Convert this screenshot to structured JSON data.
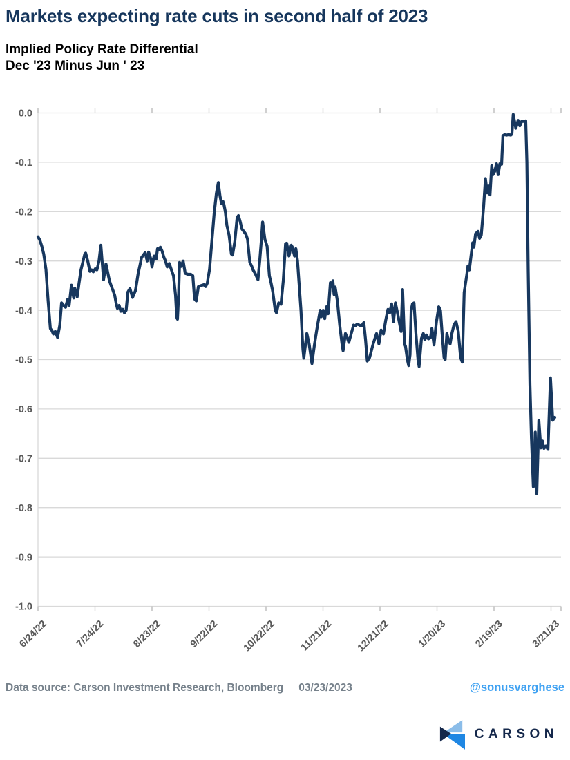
{
  "title": "Markets expecting rate cuts in second half of 2023",
  "subtitle_line1": "Implied Policy Rate Differential",
  "subtitle_line2": "Dec '23 Minus Jun ' 23",
  "footer": {
    "data_source": "Data source:  Carson Investment Research, Bloomberg",
    "date": "03/23/2023",
    "handle": "@sonusvarghese",
    "logo_text": "CARSON"
  },
  "colors": {
    "title": "#16365c",
    "line": "#17375e",
    "grid": "#d9d9d9",
    "tick": "#b7b7b7",
    "axis_label": "#595959",
    "footer_text": "#76818b",
    "handle_blue": "#3ea1f2",
    "logo_navy": "#15284b",
    "logo_light_blue": "#8bbde9",
    "logo_bright_blue": "#1f87e3"
  },
  "chart_data": {
    "type": "line",
    "title": "Implied Policy Rate Differential Dec '23 Minus Jun '23",
    "xlabel": "",
    "ylabel": "",
    "ylim": [
      -1.0,
      0.0
    ],
    "y_tick_labels": [
      "0.0",
      "-0.1",
      "-0.2",
      "-0.3",
      "-0.4",
      "-0.5",
      "-0.6",
      "-0.7",
      "-0.8",
      "-0.9",
      "-1.0"
    ],
    "x_tick_labels": [
      "6/24/22",
      "7/24/22",
      "8/23/22",
      "9/22/22",
      "10/22/22",
      "11/21/22",
      "12/21/22",
      "1/20/23",
      "2/19/23",
      "3/21/23"
    ],
    "x_tick_days": [
      0,
      30,
      60,
      90,
      120,
      150,
      180,
      210,
      240,
      270
    ],
    "x_unit": "calendar days since 6/24/22",
    "grid": "horizontal",
    "legend": "none",
    "series": [
      {
        "name": "Dec '23 minus Jun '23 implied policy rate differential",
        "points": [
          [
            0,
            -0.251
          ],
          [
            1,
            -0.258
          ],
          [
            2,
            -0.27
          ],
          [
            3,
            -0.286
          ],
          [
            4.2,
            -0.317
          ],
          [
            5.3,
            -0.38
          ],
          [
            6.5,
            -0.437
          ],
          [
            7.3,
            -0.441
          ],
          [
            8.1,
            -0.448
          ],
          [
            9.1,
            -0.443
          ],
          [
            10.3,
            -0.455
          ],
          [
            11.5,
            -0.43
          ],
          [
            12.4,
            -0.385
          ],
          [
            13.5,
            -0.39
          ],
          [
            14.5,
            -0.394
          ],
          [
            15.6,
            -0.378
          ],
          [
            16.4,
            -0.39
          ],
          [
            17.6,
            -0.349
          ],
          [
            18.8,
            -0.375
          ],
          [
            19.4,
            -0.355
          ],
          [
            20.6,
            -0.373
          ],
          [
            21.6,
            -0.345
          ],
          [
            22.6,
            -0.318
          ],
          [
            24.6,
            -0.286
          ],
          [
            25.1,
            -0.284
          ],
          [
            26.2,
            -0.3
          ],
          [
            27.3,
            -0.321
          ],
          [
            28.2,
            -0.318
          ],
          [
            29.1,
            -0.322
          ],
          [
            30.1,
            -0.316
          ],
          [
            31,
            -0.318
          ],
          [
            32.1,
            -0.3
          ],
          [
            33.1,
            -0.268
          ],
          [
            34.5,
            -0.338
          ],
          [
            35.8,
            -0.306
          ],
          [
            37.6,
            -0.34
          ],
          [
            38.5,
            -0.35
          ],
          [
            39.5,
            -0.36
          ],
          [
            40.4,
            -0.37
          ],
          [
            41.1,
            -0.385
          ],
          [
            41.8,
            -0.396
          ],
          [
            42.7,
            -0.39
          ],
          [
            43.6,
            -0.402
          ],
          [
            44.6,
            -0.398
          ],
          [
            45.5,
            -0.405
          ],
          [
            46.4,
            -0.4
          ],
          [
            47.3,
            -0.363
          ],
          [
            48.4,
            -0.356
          ],
          [
            49.8,
            -0.374
          ],
          [
            51.3,
            -0.36
          ],
          [
            52.7,
            -0.326
          ],
          [
            53.6,
            -0.31
          ],
          [
            54.5,
            -0.293
          ],
          [
            55.5,
            -0.288
          ],
          [
            56.4,
            -0.283
          ],
          [
            57.5,
            -0.3
          ],
          [
            58.2,
            -0.282
          ],
          [
            59.3,
            -0.295
          ],
          [
            60,
            -0.312
          ],
          [
            61.1,
            -0.29
          ],
          [
            62.2,
            -0.296
          ],
          [
            62.9,
            -0.275
          ],
          [
            63.7,
            -0.277
          ],
          [
            64.4,
            -0.272
          ],
          [
            65.3,
            -0.28
          ],
          [
            66.2,
            -0.292
          ],
          [
            67.1,
            -0.3
          ],
          [
            68,
            -0.312
          ],
          [
            69.1,
            -0.305
          ],
          [
            70.2,
            -0.318
          ],
          [
            71.3,
            -0.33
          ],
          [
            72.4,
            -0.37
          ],
          [
            73,
            -0.414
          ],
          [
            73.4,
            -0.418
          ],
          [
            74,
            -0.37
          ],
          [
            74.5,
            -0.303
          ],
          [
            75.3,
            -0.311
          ],
          [
            76.4,
            -0.3
          ],
          [
            77.5,
            -0.325
          ],
          [
            78.9,
            -0.327
          ],
          [
            80.4,
            -0.327
          ],
          [
            81.5,
            -0.33
          ],
          [
            82.4,
            -0.377
          ],
          [
            83.3,
            -0.381
          ],
          [
            84.4,
            -0.352
          ],
          [
            85.8,
            -0.35
          ],
          [
            87.3,
            -0.348
          ],
          [
            88.2,
            -0.352
          ],
          [
            89.1,
            -0.345
          ],
          [
            90.3,
            -0.317
          ],
          [
            91.5,
            -0.261
          ],
          [
            92.7,
            -0.205
          ],
          [
            93.9,
            -0.163
          ],
          [
            94.9,
            -0.141
          ],
          [
            95.8,
            -0.168
          ],
          [
            96.6,
            -0.184
          ],
          [
            97.3,
            -0.179
          ],
          [
            97.9,
            -0.186
          ],
          [
            98.6,
            -0.2
          ],
          [
            99.4,
            -0.228
          ],
          [
            100.6,
            -0.248
          ],
          [
            101.8,
            -0.286
          ],
          [
            102.4,
            -0.288
          ],
          [
            103.6,
            -0.26
          ],
          [
            104.8,
            -0.212
          ],
          [
            105.5,
            -0.208
          ],
          [
            106.4,
            -0.22
          ],
          [
            107.3,
            -0.235
          ],
          [
            108.5,
            -0.241
          ],
          [
            109.4,
            -0.246
          ],
          [
            110.3,
            -0.256
          ],
          [
            111.5,
            -0.303
          ],
          [
            112.4,
            -0.31
          ],
          [
            113.3,
            -0.319
          ],
          [
            114.3,
            -0.325
          ],
          [
            115.2,
            -0.333
          ],
          [
            115.8,
            -0.338
          ],
          [
            116.7,
            -0.3
          ],
          [
            117.6,
            -0.256
          ],
          [
            118.2,
            -0.221
          ],
          [
            119.4,
            -0.256
          ],
          [
            120.6,
            -0.27
          ],
          [
            121.8,
            -0.33
          ],
          [
            122.7,
            -0.345
          ],
          [
            123.6,
            -0.363
          ],
          [
            124.8,
            -0.399
          ],
          [
            125.5,
            -0.405
          ],
          [
            126.7,
            -0.385
          ],
          [
            127.9,
            -0.388
          ],
          [
            129.1,
            -0.34
          ],
          [
            130.3,
            -0.265
          ],
          [
            130.9,
            -0.264
          ],
          [
            132.1,
            -0.29
          ],
          [
            133.3,
            -0.268
          ],
          [
            133.9,
            -0.272
          ],
          [
            135,
            -0.29
          ],
          [
            135.7,
            -0.275
          ],
          [
            136.6,
            -0.3
          ],
          [
            137.5,
            -0.35
          ],
          [
            138.4,
            -0.4
          ],
          [
            139.4,
            -0.479
          ],
          [
            139.9,
            -0.497
          ],
          [
            141.5,
            -0.447
          ],
          [
            142.7,
            -0.468
          ],
          [
            144.2,
            -0.508
          ],
          [
            145.5,
            -0.47
          ],
          [
            146.7,
            -0.44
          ],
          [
            147.3,
            -0.426
          ],
          [
            148.5,
            -0.4
          ],
          [
            149.1,
            -0.413
          ],
          [
            150.1,
            -0.4
          ],
          [
            150.9,
            -0.417
          ],
          [
            151.8,
            -0.393
          ],
          [
            152.7,
            -0.407
          ],
          [
            153.9,
            -0.344
          ],
          [
            154.5,
            -0.352
          ],
          [
            155.2,
            -0.34
          ],
          [
            155.8,
            -0.368
          ],
          [
            156.4,
            -0.353
          ],
          [
            157.6,
            -0.382
          ],
          [
            158.8,
            -0.43
          ],
          [
            160,
            -0.468
          ],
          [
            160.6,
            -0.482
          ],
          [
            161.8,
            -0.447
          ],
          [
            162.7,
            -0.455
          ],
          [
            163.6,
            -0.465
          ],
          [
            164.8,
            -0.448
          ],
          [
            166.1,
            -0.43
          ],
          [
            167,
            -0.432
          ],
          [
            167.9,
            -0.428
          ],
          [
            169.1,
            -0.43
          ],
          [
            170.3,
            -0.432
          ],
          [
            171.5,
            -0.425
          ],
          [
            172.4,
            -0.46
          ],
          [
            173.3,
            -0.503
          ],
          [
            174.5,
            -0.496
          ],
          [
            176.4,
            -0.468
          ],
          [
            178.2,
            -0.447
          ],
          [
            179.4,
            -0.468
          ],
          [
            180.6,
            -0.44
          ],
          [
            181.8,
            -0.448
          ],
          [
            183,
            -0.42
          ],
          [
            184.2,
            -0.398
          ],
          [
            185.1,
            -0.405
          ],
          [
            186.1,
            -0.387
          ],
          [
            187.1,
            -0.423
          ],
          [
            188.1,
            -0.385
          ],
          [
            189.2,
            -0.405
          ],
          [
            190.3,
            -0.427
          ],
          [
            191.1,
            -0.443
          ],
          [
            191.9,
            -0.358
          ],
          [
            192.9,
            -0.468
          ],
          [
            193.4,
            -0.473
          ],
          [
            194.4,
            -0.5
          ],
          [
            195.1,
            -0.512
          ],
          [
            195.8,
            -0.49
          ],
          [
            196.4,
            -0.4
          ],
          [
            197.1,
            -0.387
          ],
          [
            197.9,
            -0.385
          ],
          [
            198.9,
            -0.447
          ],
          [
            200,
            -0.5
          ],
          [
            200.6,
            -0.514
          ],
          [
            201.8,
            -0.457
          ],
          [
            202.8,
            -0.447
          ],
          [
            203.6,
            -0.46
          ],
          [
            204.5,
            -0.45
          ],
          [
            205.5,
            -0.458
          ],
          [
            206.6,
            -0.455
          ],
          [
            207.3,
            -0.437
          ],
          [
            208.4,
            -0.47
          ],
          [
            209.7,
            -0.423
          ],
          [
            210.9,
            -0.393
          ],
          [
            211.8,
            -0.4
          ],
          [
            212.7,
            -0.447
          ],
          [
            213.7,
            -0.496
          ],
          [
            214.3,
            -0.5
          ],
          [
            215.2,
            -0.447
          ],
          [
            216,
            -0.46
          ],
          [
            216.9,
            -0.468
          ],
          [
            217.8,
            -0.447
          ],
          [
            218.9,
            -0.43
          ],
          [
            220,
            -0.423
          ],
          [
            221.2,
            -0.443
          ],
          [
            222.4,
            -0.496
          ],
          [
            223.3,
            -0.505
          ],
          [
            224.3,
            -0.364
          ],
          [
            225.7,
            -0.327
          ],
          [
            226.3,
            -0.31
          ],
          [
            227,
            -0.318
          ],
          [
            228,
            -0.287
          ],
          [
            228.8,
            -0.263
          ],
          [
            229.4,
            -0.272
          ],
          [
            230.3,
            -0.245
          ],
          [
            231.6,
            -0.24
          ],
          [
            232.4,
            -0.254
          ],
          [
            233.3,
            -0.247
          ],
          [
            234.5,
            -0.191
          ],
          [
            235.5,
            -0.133
          ],
          [
            236.4,
            -0.162
          ],
          [
            237.1,
            -0.148
          ],
          [
            237.9,
            -0.166
          ],
          [
            238.8,
            -0.107
          ],
          [
            239.5,
            -0.125
          ],
          [
            240.4,
            -0.118
          ],
          [
            241.3,
            -0.103
          ],
          [
            242.2,
            -0.125
          ],
          [
            243.1,
            -0.103
          ],
          [
            244,
            -0.104
          ],
          [
            244.7,
            -0.046
          ],
          [
            245.6,
            -0.044
          ],
          [
            246.6,
            -0.045
          ],
          [
            247.7,
            -0.044
          ],
          [
            248.8,
            -0.045
          ],
          [
            249.4,
            -0.043
          ],
          [
            250.1,
            -0.003
          ],
          [
            251.5,
            -0.031
          ],
          [
            252.7,
            -0.015
          ],
          [
            253.6,
            -0.026
          ],
          [
            254.6,
            -0.017
          ],
          [
            255.6,
            -0.017
          ],
          [
            256.7,
            -0.016
          ],
          [
            257.3,
            -0.1
          ],
          [
            258,
            -0.32
          ],
          [
            258.9,
            -0.55
          ],
          [
            259.7,
            -0.66
          ],
          [
            260.7,
            -0.758
          ],
          [
            261.7,
            -0.647
          ],
          [
            262.5,
            -0.772
          ],
          [
            263.6,
            -0.623
          ],
          [
            264.6,
            -0.679
          ],
          [
            265.5,
            -0.665
          ],
          [
            266.3,
            -0.68
          ],
          [
            267.4,
            -0.675
          ],
          [
            268.4,
            -0.682
          ],
          [
            269.7,
            -0.537
          ],
          [
            270.9,
            -0.623
          ],
          [
            272,
            -0.617
          ]
        ]
      }
    ]
  }
}
